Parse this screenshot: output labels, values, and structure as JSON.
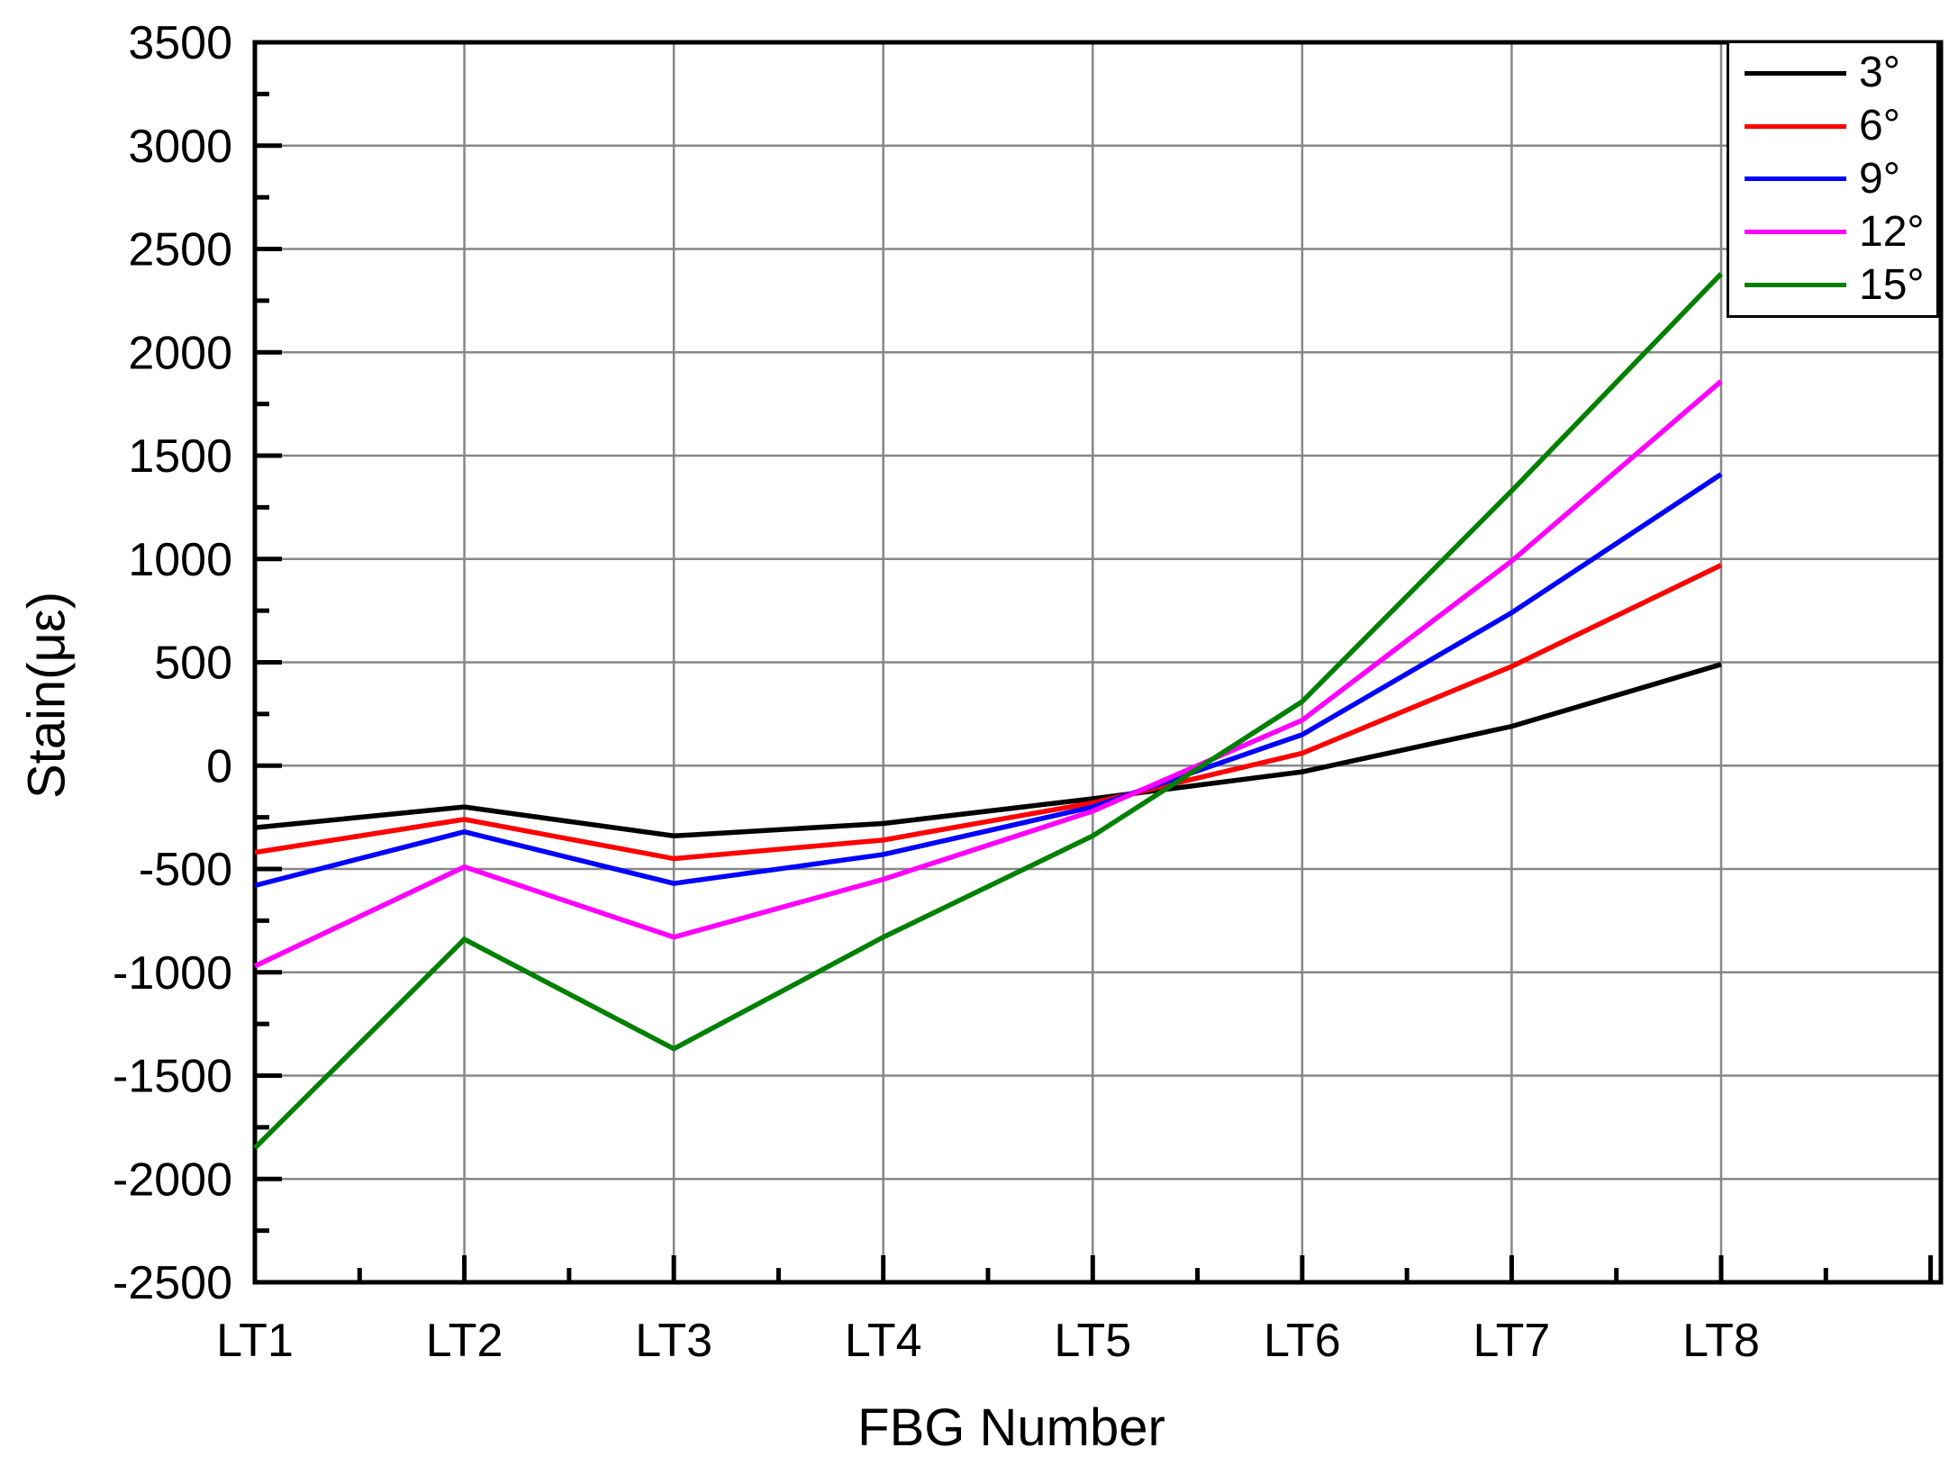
{
  "page": {
    "background": "#ffffff"
  },
  "chart_data": {
    "type": "line",
    "title": "",
    "xlabel": "FBG Number",
    "ylabel": "Stain(με)",
    "categories": [
      "LT1",
      "LT2",
      "LT3",
      "LT4",
      "LT5",
      "LT6",
      "LT7",
      "LT8"
    ],
    "series": [
      {
        "name": "3°",
        "color": "#000000",
        "values": [
          -300,
          -200,
          -340,
          -280,
          -160,
          -30,
          190,
          490
        ]
      },
      {
        "name": "6°",
        "color": "#ff0000",
        "values": [
          -420,
          -260,
          -450,
          -360,
          -180,
          60,
          480,
          970
        ]
      },
      {
        "name": "9°",
        "color": "#0000ff",
        "values": [
          -580,
          -320,
          -570,
          -430,
          -200,
          150,
          740,
          1410
        ]
      },
      {
        "name": "12°",
        "color": "#ff00ff",
        "values": [
          -970,
          -490,
          -830,
          -550,
          -220,
          220,
          990,
          1860
        ]
      },
      {
        "name": "15°",
        "color": "#008000",
        "values": [
          -1850,
          -840,
          -1370,
          -830,
          -340,
          310,
          1330,
          2380
        ]
      }
    ],
    "ylim": [
      -2500,
      3500
    ],
    "y_tick_step": 500,
    "y_minor_tick_step": 250,
    "y_tick_labels": [
      "3500",
      "3000",
      "2500",
      "2000",
      "1500",
      "1000",
      "500",
      "0",
      "-500",
      "-1000",
      "-1500",
      "-2000",
      "-2500"
    ],
    "grid": true,
    "legend_position": "top-right",
    "axis_color": "#000000",
    "grid_color": "#878787",
    "text_color": "#000000"
  }
}
